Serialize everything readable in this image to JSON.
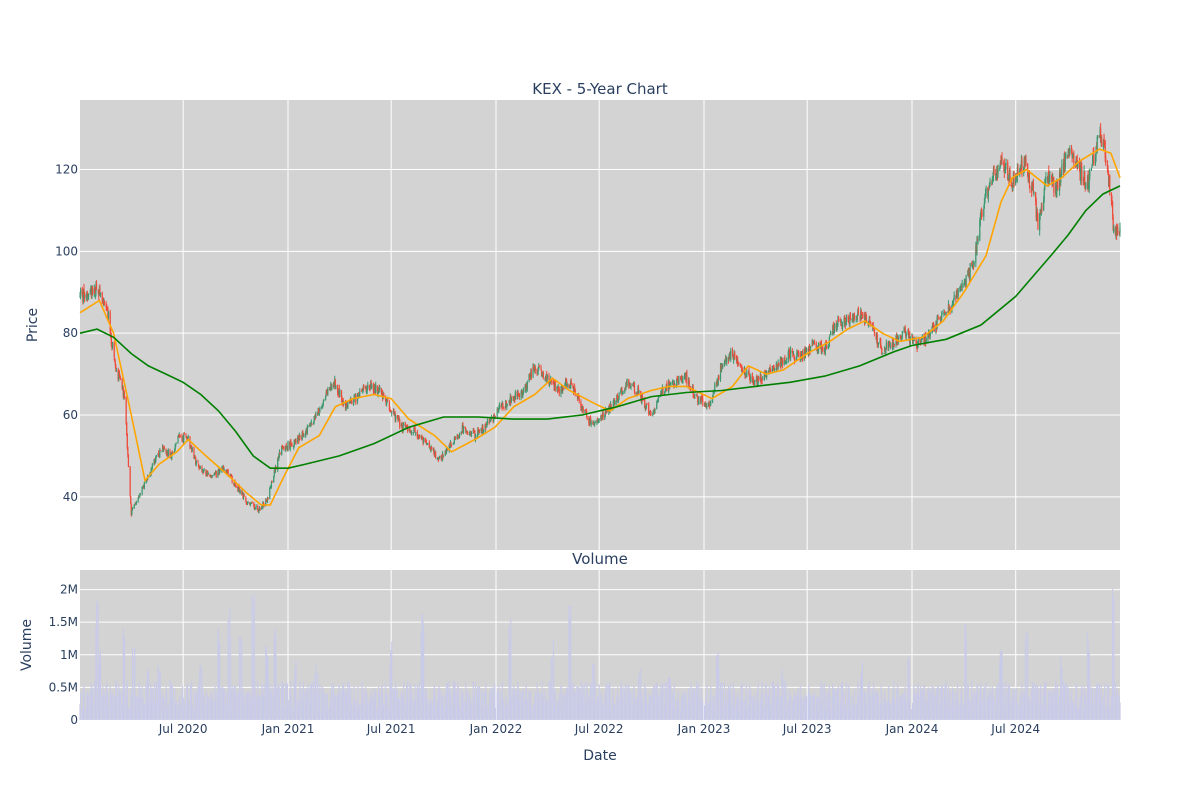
{
  "chart_data": {
    "type": "candlestick",
    "title": "KEX - 5-Year Chart",
    "price_panel": {
      "ylabel": "Price",
      "ylim": [
        27,
        137
      ],
      "yticks": [
        40,
        60,
        80,
        100,
        120
      ],
      "grid": true,
      "legend": "none"
    },
    "volume_panel": {
      "title": "Volume",
      "ylabel": "Volume",
      "ylim": [
        0,
        2300000
      ],
      "yticks": [
        0,
        500000,
        1000000,
        1500000,
        2000000
      ],
      "ytick_labels": [
        "0",
        "0.5M",
        "1M",
        "1.5M",
        "2M"
      ],
      "xlabel": "Date"
    },
    "x_range": [
      "2020-01-02",
      "2024-12-31"
    ],
    "xticks": [
      {
        "date": "2020-07-01",
        "label": "Jul 2020"
      },
      {
        "date": "2021-01-01",
        "label": "Jan 2021"
      },
      {
        "date": "2021-07-01",
        "label": "Jul 2021"
      },
      {
        "date": "2022-01-01",
        "label": "Jan 2022"
      },
      {
        "date": "2022-07-01",
        "label": "Jul 2022"
      },
      {
        "date": "2023-01-01",
        "label": "Jan 2023"
      },
      {
        "date": "2023-07-01",
        "label": "Jul 2023"
      },
      {
        "date": "2024-01-01",
        "label": "Jan 2024"
      },
      {
        "date": "2024-07-01",
        "label": "Jul 2024"
      }
    ],
    "close_path": [
      [
        "2020-01-02",
        89
      ],
      [
        "2020-02-01",
        91
      ],
      [
        "2020-02-20",
        85
      ],
      [
        "2020-03-01",
        74
      ],
      [
        "2020-03-20",
        64
      ],
      [
        "2020-04-01",
        36
      ],
      [
        "2020-04-20",
        42
      ],
      [
        "2020-05-10",
        48
      ],
      [
        "2020-05-25",
        52
      ],
      [
        "2020-06-10",
        50
      ],
      [
        "2020-06-25",
        55
      ],
      [
        "2020-07-10",
        54
      ],
      [
        "2020-07-25",
        48
      ],
      [
        "2020-08-20",
        45
      ],
      [
        "2020-09-10",
        47
      ],
      [
        "2020-10-01",
        43
      ],
      [
        "2020-10-20",
        39
      ],
      [
        "2020-11-10",
        37
      ],
      [
        "2020-11-25",
        39
      ],
      [
        "2020-12-10",
        47
      ],
      [
        "2020-12-20",
        52
      ],
      [
        "2021-01-10",
        53
      ],
      [
        "2021-02-01",
        56
      ],
      [
        "2021-02-20",
        60
      ],
      [
        "2021-03-10",
        65
      ],
      [
        "2021-03-25",
        68
      ],
      [
        "2021-04-10",
        62
      ],
      [
        "2021-05-01",
        64
      ],
      [
        "2021-05-20",
        67
      ],
      [
        "2021-06-10",
        66
      ],
      [
        "2021-07-01",
        61
      ],
      [
        "2021-07-20",
        57
      ],
      [
        "2021-08-10",
        56
      ],
      [
        "2021-09-01",
        53
      ],
      [
        "2021-09-25",
        49
      ],
      [
        "2021-10-15",
        53
      ],
      [
        "2021-11-05",
        57
      ],
      [
        "2021-11-25",
        55
      ],
      [
        "2021-12-20",
        58
      ],
      [
        "2022-01-10",
        62
      ],
      [
        "2022-01-30",
        64
      ],
      [
        "2022-02-20",
        66
      ],
      [
        "2022-03-10",
        72
      ],
      [
        "2022-03-30",
        69
      ],
      [
        "2022-04-20",
        66
      ],
      [
        "2022-05-10",
        68
      ],
      [
        "2022-06-01",
        62
      ],
      [
        "2022-06-20",
        57
      ],
      [
        "2022-07-10",
        60
      ],
      [
        "2022-08-01",
        64
      ],
      [
        "2022-08-20",
        68
      ],
      [
        "2022-09-10",
        65
      ],
      [
        "2022-09-30",
        60
      ],
      [
        "2022-10-20",
        66
      ],
      [
        "2022-11-10",
        68
      ],
      [
        "2022-12-01",
        69
      ],
      [
        "2022-12-20",
        64
      ],
      [
        "2023-01-10",
        62
      ],
      [
        "2023-02-01",
        72
      ],
      [
        "2023-02-20",
        75
      ],
      [
        "2023-03-10",
        71
      ],
      [
        "2023-04-01",
        68
      ],
      [
        "2023-04-20",
        70
      ],
      [
        "2023-05-10",
        72
      ],
      [
        "2023-06-01",
        75
      ],
      [
        "2023-06-20",
        74
      ],
      [
        "2023-07-10",
        77
      ],
      [
        "2023-08-01",
        76
      ],
      [
        "2023-08-20",
        82
      ],
      [
        "2023-09-10",
        83
      ],
      [
        "2023-10-01",
        85
      ],
      [
        "2023-10-20",
        82
      ],
      [
        "2023-11-10",
        76
      ],
      [
        "2023-11-30",
        78
      ],
      [
        "2023-12-20",
        80
      ],
      [
        "2024-01-10",
        77
      ],
      [
        "2024-02-01",
        80
      ],
      [
        "2024-02-20",
        84
      ],
      [
        "2024-03-10",
        87
      ],
      [
        "2024-04-01",
        92
      ],
      [
        "2024-04-20",
        98
      ],
      [
        "2024-05-01",
        110
      ],
      [
        "2024-05-20",
        118
      ],
      [
        "2024-06-10",
        121
      ],
      [
        "2024-06-25",
        117
      ],
      [
        "2024-07-15",
        122
      ],
      [
        "2024-08-01",
        114
      ],
      [
        "2024-08-10",
        106
      ],
      [
        "2024-08-25",
        118
      ],
      [
        "2024-09-10",
        115
      ],
      [
        "2024-10-01",
        124
      ],
      [
        "2024-10-20",
        120
      ],
      [
        "2024-11-05",
        116
      ],
      [
        "2024-11-25",
        130
      ],
      [
        "2024-12-05",
        124
      ],
      [
        "2024-12-15",
        113
      ],
      [
        "2024-12-20",
        105
      ],
      [
        "2024-12-31",
        106
      ]
    ],
    "moving_averages": [
      {
        "color": "#ffa500",
        "points": [
          [
            "2020-01-02",
            85
          ],
          [
            "2020-02-05",
            88
          ],
          [
            "2020-03-01",
            80
          ],
          [
            "2020-04-01",
            60
          ],
          [
            "2020-04-25",
            44
          ],
          [
            "2020-05-20",
            48
          ],
          [
            "2020-06-20",
            51
          ],
          [
            "2020-07-10",
            54
          ],
          [
            "2020-08-10",
            50
          ],
          [
            "2020-09-20",
            45
          ],
          [
            "2020-10-20",
            41
          ],
          [
            "2020-11-15",
            38
          ],
          [
            "2020-12-01",
            38
          ],
          [
            "2020-12-25",
            45
          ],
          [
            "2021-01-20",
            52
          ],
          [
            "2021-02-25",
            55
          ],
          [
            "2021-03-25",
            62
          ],
          [
            "2021-04-25",
            64
          ],
          [
            "2021-06-01",
            65
          ],
          [
            "2021-07-01",
            64
          ],
          [
            "2021-08-01",
            59
          ],
          [
            "2021-09-15",
            55
          ],
          [
            "2021-10-15",
            51
          ],
          [
            "2021-11-25",
            54
          ],
          [
            "2021-12-30",
            57
          ],
          [
            "2022-02-01",
            62
          ],
          [
            "2022-03-10",
            65
          ],
          [
            "2022-04-10",
            69
          ],
          [
            "2022-05-10",
            66
          ],
          [
            "2022-06-20",
            63
          ],
          [
            "2022-07-20",
            61
          ],
          [
            "2022-08-20",
            64
          ],
          [
            "2022-09-30",
            66
          ],
          [
            "2022-11-01",
            67
          ],
          [
            "2022-12-01",
            67
          ],
          [
            "2023-01-15",
            64
          ],
          [
            "2023-02-20",
            67
          ],
          [
            "2023-03-20",
            72
          ],
          [
            "2023-04-20",
            70
          ],
          [
            "2023-05-20",
            71
          ],
          [
            "2023-07-01",
            75
          ],
          [
            "2023-08-10",
            78
          ],
          [
            "2023-09-10",
            81
          ],
          [
            "2023-10-10",
            83
          ],
          [
            "2023-11-10",
            80
          ],
          [
            "2023-12-10",
            78
          ],
          [
            "2024-01-20",
            79
          ],
          [
            "2024-02-25",
            83
          ],
          [
            "2024-04-01",
            90
          ],
          [
            "2024-05-10",
            99
          ],
          [
            "2024-06-05",
            112
          ],
          [
            "2024-06-25",
            118
          ],
          [
            "2024-07-20",
            120
          ],
          [
            "2024-08-25",
            116
          ],
          [
            "2024-09-20",
            118
          ],
          [
            "2024-10-20",
            122
          ],
          [
            "2024-11-25",
            125
          ],
          [
            "2024-12-15",
            124
          ],
          [
            "2024-12-31",
            118
          ]
        ]
      },
      {
        "color": "#008000",
        "points": [
          [
            "2020-01-02",
            80
          ],
          [
            "2020-02-01",
            81
          ],
          [
            "2020-03-01",
            79
          ],
          [
            "2020-04-01",
            75
          ],
          [
            "2020-05-01",
            72
          ],
          [
            "2020-06-01",
            70
          ],
          [
            "2020-07-01",
            68
          ],
          [
            "2020-08-01",
            65
          ],
          [
            "2020-09-01",
            61
          ],
          [
            "2020-10-01",
            56
          ],
          [
            "2020-11-01",
            50
          ],
          [
            "2020-12-01",
            47
          ],
          [
            "2021-01-01",
            47
          ],
          [
            "2021-02-01",
            48
          ],
          [
            "2021-04-01",
            50
          ],
          [
            "2021-06-01",
            53
          ],
          [
            "2021-08-01",
            57
          ],
          [
            "2021-10-01",
            59.5
          ],
          [
            "2021-12-01",
            59.5
          ],
          [
            "2022-02-01",
            59
          ],
          [
            "2022-04-01",
            59
          ],
          [
            "2022-06-01",
            60
          ],
          [
            "2022-08-01",
            62
          ],
          [
            "2022-10-01",
            64.5
          ],
          [
            "2022-12-01",
            65.5
          ],
          [
            "2023-02-01",
            66
          ],
          [
            "2023-04-01",
            67
          ],
          [
            "2023-06-01",
            68
          ],
          [
            "2023-08-01",
            69.5
          ],
          [
            "2023-10-01",
            72
          ],
          [
            "2023-12-01",
            75.5
          ],
          [
            "2024-01-01",
            77
          ],
          [
            "2024-03-01",
            78.5
          ],
          [
            "2024-05-01",
            82
          ],
          [
            "2024-07-01",
            89
          ],
          [
            "2024-08-01",
            94
          ],
          [
            "2024-09-01",
            99
          ],
          [
            "2024-10-01",
            104
          ],
          [
            "2024-11-01",
            110
          ],
          [
            "2024-12-01",
            114
          ],
          [
            "2024-12-31",
            116
          ]
        ]
      }
    ],
    "volume_spikes": [
      [
        "2020-02-01",
        1900000
      ],
      [
        "2020-02-05",
        1100000
      ],
      [
        "2020-03-20",
        1500000
      ],
      [
        "2020-04-05",
        1200000
      ],
      [
        "2020-05-01",
        800000
      ],
      [
        "2020-05-20",
        900000
      ],
      [
        "2020-06-10",
        650000
      ],
      [
        "2020-08-01",
        1000000
      ],
      [
        "2020-09-01",
        1400000
      ],
      [
        "2020-09-20",
        1800000
      ],
      [
        "2020-10-10",
        1500000
      ],
      [
        "2020-11-01",
        2200000
      ],
      [
        "2020-11-25",
        1200000
      ],
      [
        "2020-12-10",
        1400000
      ],
      [
        "2021-01-15",
        1000000
      ],
      [
        "2021-02-20",
        900000
      ],
      [
        "2021-07-01",
        1200000
      ],
      [
        "2021-08-25",
        1800000
      ],
      [
        "2022-01-25",
        1700000
      ],
      [
        "2022-04-10",
        1250000
      ],
      [
        "2022-05-10",
        1800000
      ],
      [
        "2022-06-20",
        1050000
      ],
      [
        "2022-09-10",
        800000
      ],
      [
        "2022-11-01",
        800000
      ],
      [
        "2023-01-25",
        1100000
      ],
      [
        "2023-05-20",
        800000
      ],
      [
        "2023-10-05",
        900000
      ],
      [
        "2023-12-25",
        1050000
      ],
      [
        "2024-04-05",
        1500000
      ],
      [
        "2024-06-05",
        1100000
      ],
      [
        "2024-07-20",
        1350000
      ],
      [
        "2024-09-20",
        1050000
      ],
      [
        "2024-11-05",
        1400000
      ],
      [
        "2024-12-20",
        2100000
      ]
    ],
    "colors": {
      "up": "#3d9970",
      "down": "#ef4b3a",
      "volume": "#c9cbe8",
      "plot_bg": "#d3d3d3",
      "grid": "#ffffff",
      "text": "#2a3f5f"
    }
  }
}
